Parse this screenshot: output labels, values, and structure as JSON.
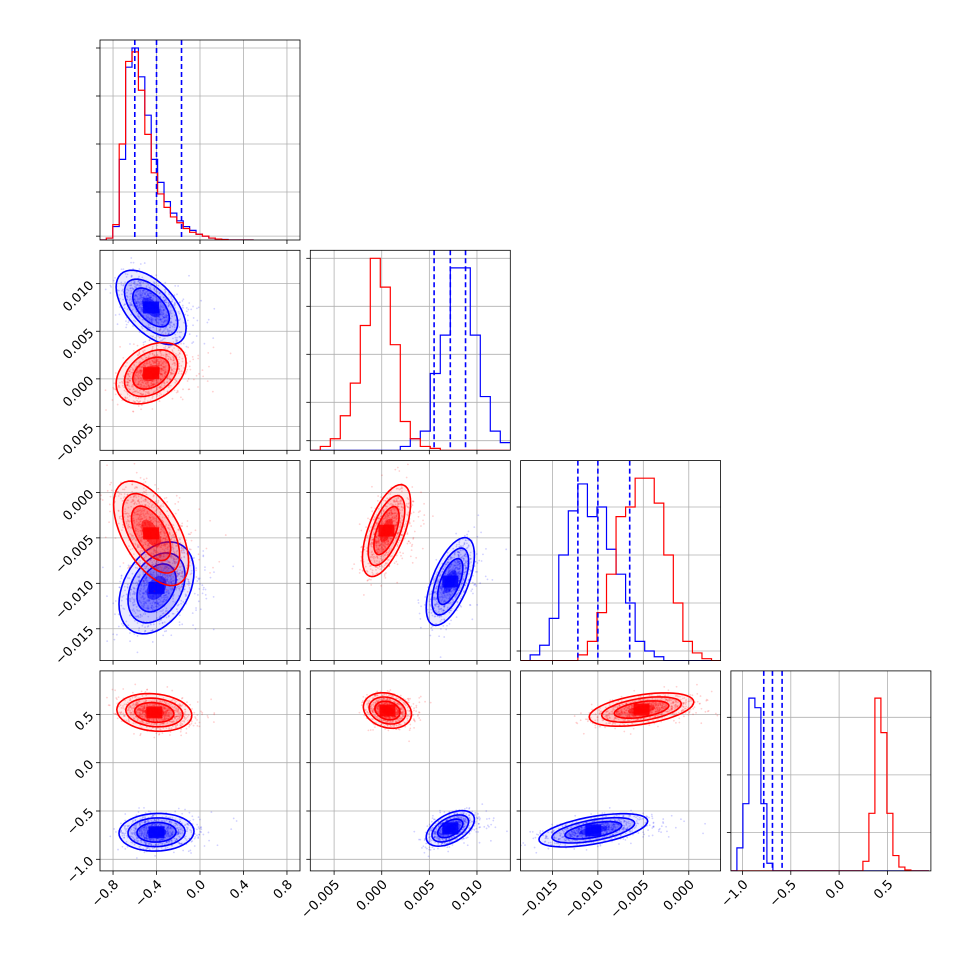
{
  "chart_data": {
    "type": "corner",
    "n_params": 4,
    "grid": true,
    "colors": {
      "A": "#0000ff",
      "B": "#ff0000"
    },
    "ranges": [
      [
        -0.92,
        0.92
      ],
      [
        -0.0075,
        0.0135
      ],
      [
        -0.0185,
        0.0035
      ],
      [
        -1.12,
        0.95
      ]
    ],
    "ticks": [
      [
        -0.8,
        -0.4,
        0.0,
        0.4,
        0.8
      ],
      [
        -0.005,
        0.0,
        0.005,
        0.01
      ],
      [
        -0.015,
        -0.01,
        -0.005,
        0.0
      ],
      [
        -1.0,
        -0.5,
        0.0,
        0.5
      ]
    ],
    "tick_labels": [
      [
        "−0.8",
        "−0.4",
        "0.0",
        "0.4",
        "0.8"
      ],
      [
        "−0.005",
        "0.000",
        "0.005",
        "0.010"
      ],
      [
        "−0.015",
        "−0.010",
        "−0.005",
        "0.000"
      ],
      [
        "−1.0",
        "−0.5",
        "0.0",
        "0.5"
      ]
    ],
    "hist_ticks": [
      [
        0.02,
        0.25,
        0.5,
        0.75,
        1.0
      ],
      [
        0.05,
        0.25,
        0.5,
        0.75,
        1.0
      ],
      [
        0.05,
        0.3,
        0.55,
        0.8
      ],
      [
        0.2,
        0.5,
        0.8
      ]
    ],
    "quantiles_A": [
      [
        -0.6,
        -0.4,
        -0.17
      ],
      [
        0.0055,
        0.0072,
        0.0088
      ],
      [
        -0.0122,
        -0.01,
        -0.0065
      ],
      [
        -0.78,
        -0.69,
        -0.59
      ]
    ],
    "series": [
      {
        "key": "A",
        "hist": [
          {
            "edges_start": -0.92,
            "edges_step": 0.0589,
            "counts": [
              0,
              0.01,
              0.07,
              0.42,
              0.9,
              1.0,
              0.85,
              0.65,
              0.42,
              0.3,
              0.2,
              0.14,
              0.1,
              0.07,
              0.05,
              0.03,
              0.02,
              0.01,
              0.005,
              0.003,
              0,
              0,
              0,
              0
            ]
          },
          {
            "edges_start": -0.0075,
            "edges_step": 0.00105,
            "counts": [
              0,
              0,
              0,
              0,
              0,
              0,
              0,
              0,
              0,
              0.02,
              0.06,
              0.1,
              0.4,
              0.6,
              0.95,
              0.95,
              0.6,
              0.28,
              0.1,
              0.04
            ]
          },
          {
            "edges_start": -0.0185,
            "edges_step": 0.00105,
            "counts": [
              0,
              0.03,
              0.08,
              0.22,
              0.55,
              0.78,
              0.92,
              0.75,
              0.8,
              0.58,
              0.45,
              0.3,
              0.1,
              0.05,
              0.02,
              0,
              0,
              0,
              0,
              0,
              0
            ]
          },
          {
            "edges_start": -1.12,
            "edges_step": 0.0621,
            "counts": [
              0,
              0.12,
              0.35,
              0.9,
              0.85,
              0.35,
              0.04,
              0,
              0,
              0,
              0,
              0,
              0,
              0,
              0,
              0,
              0,
              0,
              0,
              0,
              0,
              0,
              0,
              0,
              0,
              0,
              0,
              0,
              0,
              0,
              0,
              0,
              0
            ]
          }
        ],
        "blobs": {
          "1-0": {
            "cx": -0.45,
            "cy": 0.0075,
            "sx": 0.14,
            "sy": 0.0017,
            "rho": -0.55
          },
          "2-0": {
            "cx": -0.4,
            "cy": -0.0105,
            "sx": 0.15,
            "sy": 0.0022,
            "rho": 0.35
          },
          "2-1": {
            "cx": 0.0072,
            "cy": -0.0098,
            "sx": 0.0011,
            "sy": 0.0021,
            "rho": 0.6
          },
          "3-0": {
            "cx": -0.4,
            "cy": -0.72,
            "sx": 0.15,
            "sy": 0.085,
            "rho": 0.05
          },
          "3-1": {
            "cx": 0.0072,
            "cy": -0.68,
            "sx": 0.0011,
            "sy": 0.08,
            "rho": 0.5
          },
          "3-2": {
            "cx": -0.0105,
            "cy": -0.7,
            "sx": 0.0026,
            "sy": 0.075,
            "rho": 0.55
          }
        }
      },
      {
        "key": "B",
        "hist": [
          {
            "edges_start": -0.92,
            "edges_step": 0.0589,
            "counts": [
              0,
              0.01,
              0.08,
              0.5,
              0.93,
              0.98,
              0.78,
              0.55,
              0.35,
              0.24,
              0.17,
              0.12,
              0.09,
              0.06,
              0.04,
              0.03,
              0.02,
              0.01,
              0.005,
              0.002,
              0,
              0,
              0,
              0
            ]
          },
          {
            "edges_start": -0.0075,
            "edges_step": 0.00105,
            "counts": [
              0,
              0.02,
              0.06,
              0.18,
              0.35,
              0.65,
              1.0,
              0.85,
              0.55,
              0.15,
              0.06,
              0.02,
              0.01,
              0,
              0,
              0,
              0,
              0,
              0,
              0
            ]
          },
          {
            "edges_start": -0.0185,
            "edges_step": 0.00105,
            "counts": [
              0,
              0,
              0,
              0,
              0,
              0,
              0.03,
              0.1,
              0.25,
              0.45,
              0.75,
              0.8,
              0.95,
              0.95,
              0.82,
              0.55,
              0.3,
              0.1,
              0.04,
              0.01,
              0
            ]
          },
          {
            "edges_start": -1.12,
            "edges_step": 0.0621,
            "counts": [
              0,
              0,
              0,
              0,
              0,
              0,
              0,
              0,
              0,
              0,
              0,
              0,
              0,
              0,
              0,
              0,
              0,
              0,
              0,
              0,
              0,
              0,
              0.05,
              0.3,
              0.9,
              0.72,
              0.3,
              0.08,
              0.02,
              0.005,
              0,
              0,
              0
            ]
          }
        ],
        "blobs": {
          "1-0": {
            "cx": -0.45,
            "cy": 0.0006,
            "sx": 0.14,
            "sy": 0.0014,
            "rho": 0.35
          },
          "2-0": {
            "cx": -0.45,
            "cy": -0.0045,
            "sx": 0.15,
            "sy": 0.0025,
            "rho": -0.55
          },
          "2-1": {
            "cx": 0.0005,
            "cy": -0.0042,
            "sx": 0.0011,
            "sy": 0.0022,
            "rho": 0.6
          },
          "3-0": {
            "cx": -0.42,
            "cy": 0.52,
            "sx": 0.15,
            "sy": 0.085,
            "rho": -0.15
          },
          "3-1": {
            "cx": 0.0006,
            "cy": 0.54,
            "sx": 0.0011,
            "sy": 0.08,
            "rho": -0.2
          },
          "3-2": {
            "cx": -0.0052,
            "cy": 0.55,
            "sx": 0.0025,
            "sy": 0.075,
            "rho": 0.45
          }
        }
      }
    ]
  }
}
